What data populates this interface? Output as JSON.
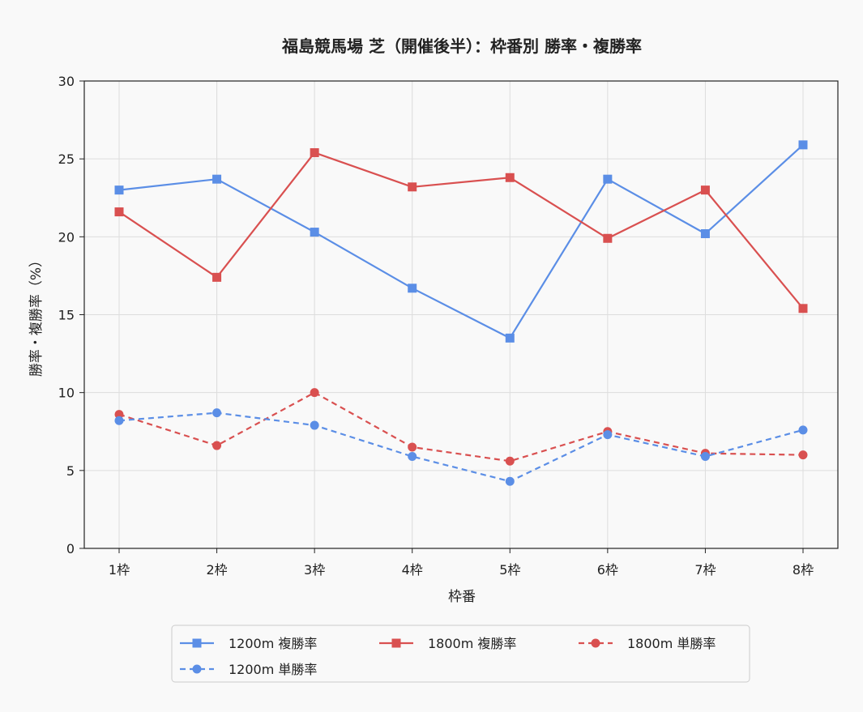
{
  "chart_data": {
    "type": "line",
    "title": "福島競馬場 芝（開催後半）：枠番別 勝率・複勝率",
    "xlabel": "枠番",
    "ylabel": "勝率・複勝率（%）",
    "categories": [
      "1枠",
      "2枠",
      "3枠",
      "4枠",
      "5枠",
      "6枠",
      "7枠",
      "8枠"
    ],
    "ylim": [
      0,
      30
    ],
    "yticks": [
      0,
      5,
      10,
      15,
      20,
      25,
      30
    ],
    "grid": true,
    "legend_position": "bottom",
    "series": [
      {
        "name": "1200m 複勝率",
        "color": "#5b8ee6",
        "line": "solid",
        "marker": "square",
        "values": [
          23.0,
          23.7,
          20.3,
          16.7,
          13.5,
          23.7,
          20.2,
          25.9
        ]
      },
      {
        "name": "1800m 複勝率",
        "color": "#d95050",
        "line": "solid",
        "marker": "square",
        "values": [
          21.6,
          17.4,
          25.4,
          23.2,
          23.8,
          19.9,
          23.0,
          15.4
        ]
      },
      {
        "name": "1800m 単勝率",
        "color": "#d95050",
        "line": "dashed",
        "marker": "circle",
        "values": [
          8.6,
          6.6,
          10.0,
          6.5,
          5.6,
          7.5,
          6.1,
          6.0
        ]
      },
      {
        "name": "1200m 単勝率",
        "color": "#5b8ee6",
        "line": "dashed",
        "marker": "circle",
        "values": [
          8.2,
          8.7,
          7.9,
          5.9,
          4.3,
          7.3,
          5.9,
          7.6
        ]
      }
    ]
  }
}
